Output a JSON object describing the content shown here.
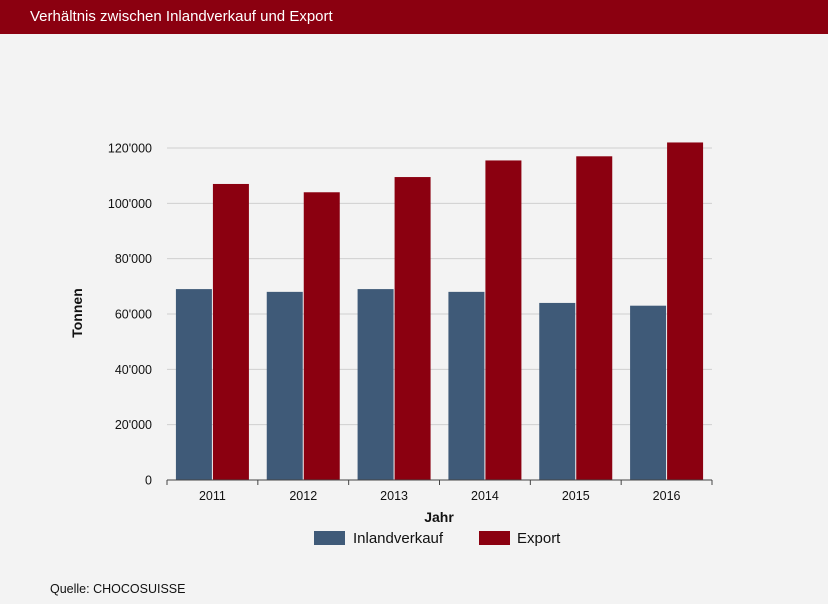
{
  "header": {
    "title": "Verhältnis zwischen Inlandverkauf und Export"
  },
  "source": "Quelle: CHOCOSUISSE",
  "chart_data": {
    "type": "bar",
    "title": "Verhältnis zwischen Inlandverkauf und Export",
    "xlabel": "Jahr",
    "ylabel": "Tonnen",
    "categories": [
      "2011",
      "2012",
      "2013",
      "2014",
      "2015",
      "2016"
    ],
    "series": [
      {
        "name": "Inlandverkauf",
        "color": "#3f5a78",
        "values": [
          69000,
          68000,
          69000,
          68000,
          64000,
          63000
        ]
      },
      {
        "name": "Export",
        "color": "#8b0010",
        "values": [
          107000,
          104000,
          109500,
          115500,
          117000,
          122000
        ]
      }
    ],
    "ylim": [
      0,
      120000
    ],
    "yticks": [
      0,
      20000,
      40000,
      60000,
      80000,
      100000,
      120000
    ],
    "ytick_labels": [
      "0",
      "20'000",
      "40'000",
      "60'000",
      "80'000",
      "100'000",
      "120'000"
    ],
    "grid": true,
    "legend_position": "bottom-center"
  }
}
